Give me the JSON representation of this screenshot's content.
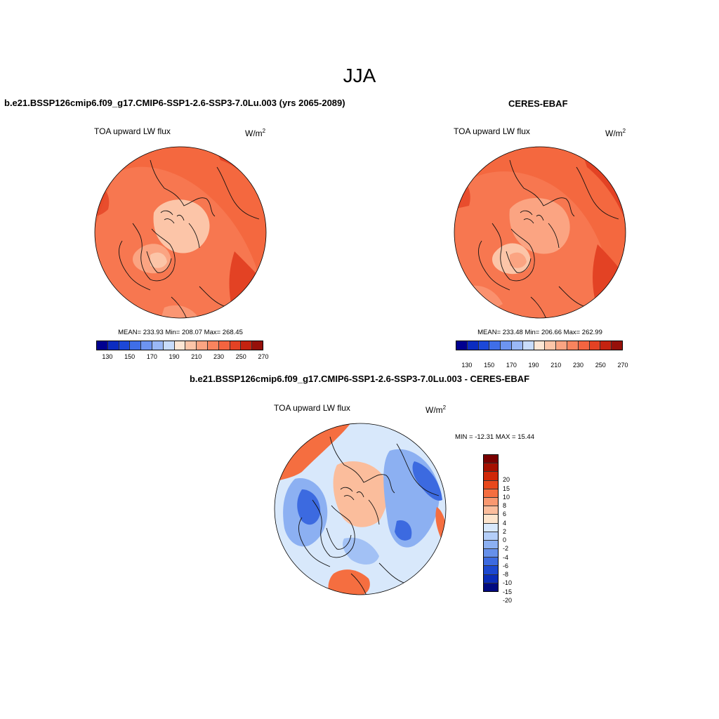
{
  "season": "JJA",
  "panels": {
    "model": {
      "title": "b.e21.BSSP126cmip6.f09_g17.CMIP6-SSP1-2.6-SSP3-7.0Lu.003 (yrs 2065-2089)",
      "variable": "TOA upward LW flux",
      "units_base": "W/m",
      "units_exp": "2",
      "stats": "MEAN= 233.93  Min= 208.07  Max= 268.45"
    },
    "obs": {
      "title": "CERES-EBAF",
      "variable": "TOA upward LW flux",
      "units_base": "W/m",
      "units_exp": "2",
      "stats": "MEAN= 233.48  Min= 206.66  Max= 262.99"
    },
    "diff": {
      "title": "b.e21.BSSP126cmip6.f09_g17.CMIP6-SSP1-2.6-SSP3-7.0Lu.003 - CERES-EBAF",
      "variable": "TOA upward LW flux",
      "units_base": "W/m",
      "units_exp": "2",
      "stats": "MIN = -12.31 MAX =  15.44"
    }
  },
  "colorbar_abs": {
    "colors": [
      "#000090",
      "#0b2cc0",
      "#1c48d8",
      "#3f6ee8",
      "#6d94f0",
      "#9ab8f6",
      "#c8dcfb",
      "#fde6d4",
      "#fcc5a8",
      "#fba482",
      "#f9845e",
      "#f36440",
      "#e34224",
      "#c42310",
      "#96100a"
    ],
    "ticks": [
      "130",
      "150",
      "170",
      "190",
      "210",
      "230",
      "250",
      "270"
    ]
  },
  "colorbar_diff": {
    "colors": [
      "#7a0000",
      "#a51000",
      "#d02808",
      "#e8481c",
      "#f56e40",
      "#f99870",
      "#fbbd9c",
      "#fde4cc",
      "#d8e8fb",
      "#b4cef8",
      "#8cb0f2",
      "#6690ea",
      "#3c6ae0",
      "#1c48d0",
      "#0a2cb8",
      "#000a80"
    ],
    "ticks": [
      "20",
      "15",
      "10",
      "8",
      "6",
      "4",
      "2",
      "0",
      "-2",
      "-4",
      "-6",
      "-8",
      "-10",
      "-15",
      "-20"
    ]
  },
  "map_colors": {
    "abs_base": "#f4683f",
    "abs_mid": "#f9845e",
    "abs_pale": "#fba482",
    "abs_light": "#fcc5a8",
    "abs_dark": "#e34224",
    "diff_base": "#d8e8fb",
    "diff_pos": "#fbbd9c",
    "diff_neg": "#8cb0f2",
    "diff_strong_neg": "#3c6ae0",
    "diff_strong_pos": "#f56e40"
  }
}
